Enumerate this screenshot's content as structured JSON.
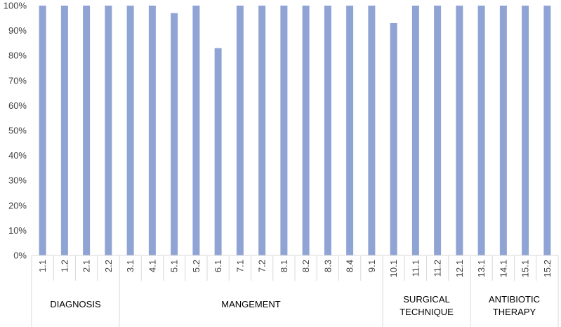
{
  "chart_data": {
    "type": "bar",
    "categories": [
      "1.1",
      "1.2",
      "2.1",
      "2.2",
      "3.1",
      "4.1",
      "5.1",
      "5.2",
      "6.1",
      "7.1",
      "7.2",
      "8.1",
      "8.2",
      "8.3",
      "8.4",
      "9.1",
      "10.1",
      "11.1",
      "11.2",
      "12.1",
      "13.1",
      "14.1",
      "15.1",
      "15.2"
    ],
    "values": [
      100,
      100,
      100,
      100,
      100,
      100,
      97,
      100,
      83,
      100,
      100,
      100,
      100,
      100,
      100,
      100,
      93,
      100,
      100,
      100,
      100,
      100,
      100,
      100
    ],
    "groups": [
      {
        "label": [
          "DIAGNOSIS"
        ],
        "count": 4
      },
      {
        "label": [
          "MANGEMENT"
        ],
        "count": 12
      },
      {
        "label": [
          "SURGICAL",
          "TECHNIQUE"
        ],
        "count": 4
      },
      {
        "label": [
          "ANTIBIOTIC",
          "THERAPY"
        ],
        "count": 4
      }
    ],
    "y_ticks": [
      "0%",
      "10%",
      "20%",
      "30%",
      "40%",
      "50%",
      "60%",
      "70%",
      "80%",
      "90%",
      "100%"
    ],
    "ylim": [
      0,
      100
    ],
    "bar_color": "#8fa4d4",
    "axis_color": "#d9d9d9",
    "legend": "none",
    "grid": false
  }
}
